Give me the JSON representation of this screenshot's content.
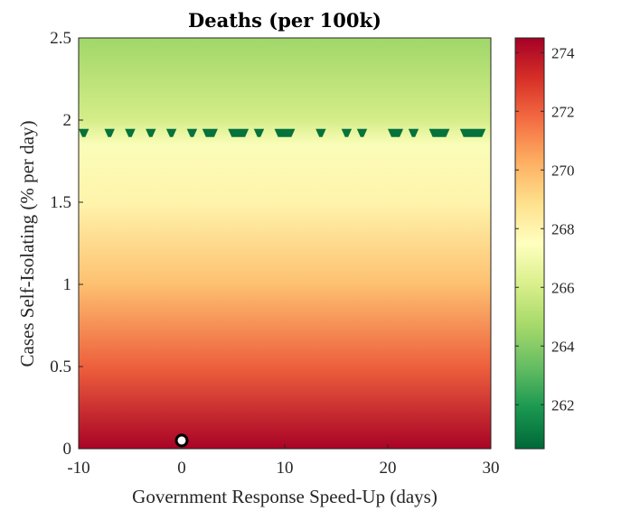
{
  "chart_data": {
    "type": "heatmap",
    "title": "Deaths (per 100k)",
    "xlabel": "Government Response Speed-Up (days)",
    "ylabel": "Cases Self-Isolating (% per day)",
    "xlim": [
      -10,
      30
    ],
    "ylim": [
      0,
      2.5
    ],
    "x_ticks": [
      "-10",
      "0",
      "10",
      "20",
      "30"
    ],
    "y_ticks": [
      "0",
      "0.5",
      "1",
      "1.5",
      "2",
      "2.5"
    ],
    "colorbar": {
      "range": [
        260.5,
        274.5
      ],
      "ticks": [
        "262",
        "264",
        "266",
        "268",
        "270",
        "272",
        "274"
      ],
      "colormap": "green-yellow-red"
    },
    "value_by_y": {
      "y": [
        0,
        0.5,
        1.0,
        1.5,
        1.85,
        2.0,
        2.5
      ],
      "deaths": [
        274.4,
        272.0,
        269.8,
        268.0,
        267.3,
        266.0,
        264.6
      ]
    },
    "low_band": {
      "y": 1.93,
      "value": 260.8,
      "x_starts": [
        -10,
        -7.5,
        -5.5,
        -3.5,
        -1.5,
        0.5,
        2.0,
        4.5,
        7.0,
        9.0,
        13.0,
        15.5,
        17.0,
        20.0,
        22.0,
        24.0,
        27.0
      ],
      "x_ends": [
        -9.0,
        -6.5,
        -4.5,
        -2.5,
        -0.5,
        1.5,
        3.5,
        6.5,
        8.0,
        11.0,
        14.0,
        16.5,
        18.0,
        21.5,
        23.0,
        26.0,
        29.5
      ]
    },
    "marker": {
      "x": 0,
      "y": 0.05
    }
  }
}
